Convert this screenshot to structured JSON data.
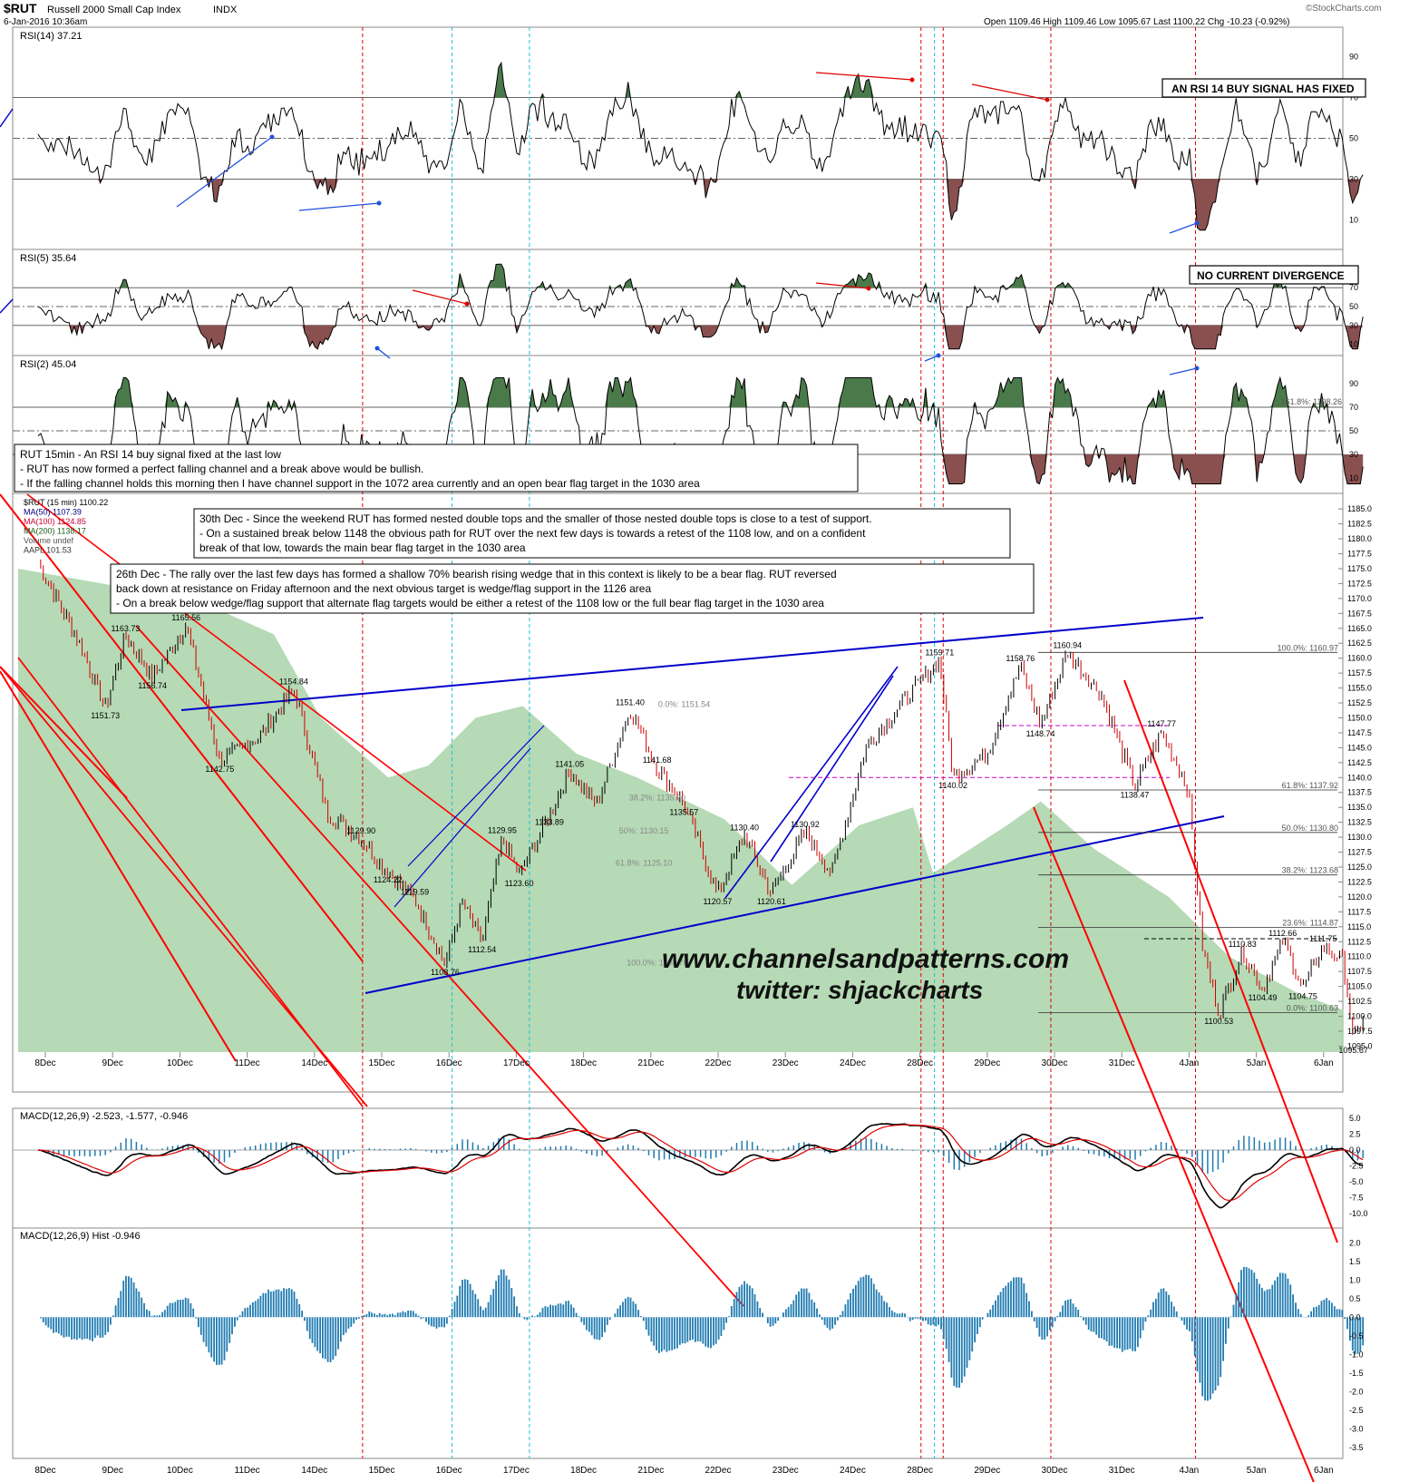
{
  "header": {
    "symbol": "$RUT",
    "name": "Russell 2000 Small Cap Index",
    "exchange": "INDX",
    "datetime": "6-Jan-2016 10:36am",
    "ohlc": "Open 1109.46  High 1109.46  Low 1095.67  Last 1100.22  Chg -10.23 (-0.92%)",
    "logo": "©StockCharts.com"
  },
  "colors": {
    "price_up": "#000000",
    "price_down": "#cc0000",
    "ma50": "#000080",
    "ma100": "#cc0033",
    "ma200": "#1a5c1a",
    "aapl_area": "#a8d4a8",
    "rsi_over": "#4a7a4a",
    "rsi_under": "#8a5050",
    "macd_hist": "#1f7bb0",
    "channel_red": "#ff0000",
    "channel_blue": "#0000cc"
  },
  "panels": {
    "rsi14": {
      "label": "RSI(14) 37.21",
      "box": "AN RSI 14 BUY SIGNAL HAS FIXED",
      "ticks": [
        "90",
        "70",
        "50",
        "30",
        "10"
      ]
    },
    "rsi5": {
      "label": "RSI(5) 35.64",
      "box": "NO CURRENT DIVERGENCE",
      "ticks": [
        "90",
        "70",
        "50",
        "30",
        "10"
      ]
    },
    "rsi2": {
      "label": "RSI(2) 45.04",
      "ticks": [
        "90",
        "70",
        "50",
        "30",
        "10"
      ],
      "fib_label": "161.8%: 1198.26"
    },
    "price": {
      "legend": [
        "$RUT (15 min) 1100.22",
        "MA(50) 1107.39",
        "MA(100) 1124.85",
        "MA(200) 1138.17",
        "Volume undef",
        "AAPL 101.53"
      ],
      "ticks": [
        "1185.0",
        "1182.5",
        "1180.0",
        "1177.5",
        "1175.0",
        "1172.5",
        "1170.0",
        "1167.5",
        "1165.0",
        "1162.5",
        "1160.0",
        "1157.5",
        "1155.0",
        "1152.5",
        "1150.0",
        "1147.5",
        "1145.0",
        "1142.5",
        "1140.0",
        "1137.5",
        "1135.0",
        "1132.5",
        "1130.0",
        "1127.5",
        "1125.0",
        "1122.5",
        "1120.0",
        "1117.5",
        "1115.0",
        "1112.5",
        "1110.0",
        "1107.5",
        "1105.0",
        "1102.5",
        "1100.0",
        "1097.5",
        "1095.0"
      ],
      "fib_labels": [
        "100.0%: 1160.97",
        "61.8%: 1137.92",
        "50.0%: 1130.80",
        "38.2%: 1123.68",
        "23.6%: 1114.87",
        "0.0%: 1100.63"
      ],
      "point_labels": [
        "1165.56",
        "1163.73",
        "1156.74",
        "1151.73",
        "1154.84",
        "1142.75",
        "1129.90",
        "1124.22",
        "1119.59",
        "1108.76",
        "1112.54",
        "1123.60",
        "1129.95",
        "1133.89",
        "1141.05",
        "1151.40",
        "1141.68",
        "1135.57",
        "1130.40",
        "1130.92",
        "1120.57",
        "1120.61",
        "1159.71",
        "1158.76",
        "1148.74",
        "1140.02",
        "1160.94",
        "1147.77",
        "1138.47",
        "1112.66",
        "1110.83",
        "1111.75",
        "1104.49",
        "1104.75",
        "1100.53",
        "1095.67"
      ],
      "mid_fib_labels": [
        "0.0%: 1151.54",
        "100.0%: 1108.76",
        "61.8%: 1125.10",
        "38.2%: 1135.20",
        "50%: 1130.15"
      ],
      "watermark": [
        "www.channelsandpatterns.com",
        "twitter: shjackcharts"
      ]
    },
    "macd": {
      "label": "MACD(12,26,9) -2.523, -1.577, -0.946",
      "ticks": [
        "5.0",
        "2.5",
        "0.0",
        "-2.5",
        "-5.0",
        "-7.5",
        "-10.0"
      ]
    },
    "hist": {
      "label": "MACD(12,26,9) Hist -0.946",
      "ticks": [
        "2.0",
        "1.5",
        "1.0",
        "0.5",
        "0.0",
        "-0.5",
        "-1.0",
        "-1.5",
        "-2.0",
        "-2.5",
        "-3.0",
        "-3.5"
      ]
    }
  },
  "notes": {
    "note1": [
      "RUT 15min - An  RSI 14 buy signal fixed at the last low",
      "- RUT has now formed a perfect falling channel and a break above would be bullish.",
      "- If the falling channel holds this morning then I have channel support in the 1072 area currently and an open bear flag target in the 1030 area"
    ],
    "note2": [
      "30th Dec - Since the weekend RUT has formed nested double tops and the smaller of those nested double tops is close to a test of support.",
      "- On a sustained break below 1148 the obvious path for RUT over the next few days is towards a retest of the 1108 low, and on a confident",
      "break of that low, towards the main bear flag target in the 1030 area"
    ],
    "note3": [
      "26th Dec - The rally over the last few days has formed a shallow 70% bearish rising wedge that in this context is likely to be a bear flag. RUT reversed",
      "back down at resistance on Friday afternoon and the next obvious target is wedge/flag support in the 1126 area",
      "- On a break below wedge/flag support that alternate flag targets would be either a retest of the 1108 low or the full bear flag target in the 1030 area"
    ]
  },
  "chart_data": {
    "type": "line",
    "title": "$RUT Russell 2000 Small Cap Index INDX",
    "interval": "15 min",
    "x_dates": [
      "8Dec",
      "9Dec",
      "10Dec",
      "11Dec",
      "14Dec",
      "15Dec",
      "16Dec",
      "17Dec",
      "18Dec",
      "21Dec",
      "22Dec",
      "23Dec",
      "24Dec",
      "28Dec",
      "29Dec",
      "30Dec",
      "31Dec",
      "4Jan",
      "5Jan",
      "6Jan"
    ],
    "price_pivots": [
      {
        "x": 0,
        "y": 1176.0
      },
      {
        "x": 0.6,
        "y": 1163.0
      },
      {
        "x": 1.0,
        "y": 1151.73
      },
      {
        "x": 1.3,
        "y": 1163.73
      },
      {
        "x": 1.7,
        "y": 1156.74
      },
      {
        "x": 2.2,
        "y": 1165.56
      },
      {
        "x": 2.7,
        "y": 1142.75
      },
      {
        "x": 3.3,
        "y": 1147.0
      },
      {
        "x": 3.8,
        "y": 1154.84
      },
      {
        "x": 4.3,
        "y": 1134.0
      },
      {
        "x": 4.8,
        "y": 1129.9
      },
      {
        "x": 5.2,
        "y": 1124.22
      },
      {
        "x": 5.6,
        "y": 1119.59
      },
      {
        "x": 6.05,
        "y": 1108.76
      },
      {
        "x": 6.3,
        "y": 1119.0
      },
      {
        "x": 6.6,
        "y": 1112.54
      },
      {
        "x": 6.9,
        "y": 1129.95
      },
      {
        "x": 7.15,
        "y": 1123.6
      },
      {
        "x": 7.6,
        "y": 1133.89
      },
      {
        "x": 7.9,
        "y": 1141.05
      },
      {
        "x": 8.3,
        "y": 1135.57
      },
      {
        "x": 8.8,
        "y": 1151.4
      },
      {
        "x": 9.2,
        "y": 1141.68
      },
      {
        "x": 9.6,
        "y": 1135.57
      },
      {
        "x": 10.1,
        "y": 1120.57
      },
      {
        "x": 10.5,
        "y": 1130.4
      },
      {
        "x": 10.9,
        "y": 1120.61
      },
      {
        "x": 11.4,
        "y": 1130.92
      },
      {
        "x": 11.8,
        "y": 1124.0
      },
      {
        "x": 12.3,
        "y": 1145.0
      },
      {
        "x": 12.8,
        "y": 1152.0
      },
      {
        "x": 13.4,
        "y": 1159.71
      },
      {
        "x": 13.6,
        "y": 1140.02
      },
      {
        "x": 14.1,
        "y": 1144.0
      },
      {
        "x": 14.6,
        "y": 1158.76
      },
      {
        "x": 14.9,
        "y": 1148.74
      },
      {
        "x": 15.3,
        "y": 1160.94
      },
      {
        "x": 15.8,
        "y": 1154.0
      },
      {
        "x": 16.3,
        "y": 1138.47
      },
      {
        "x": 16.7,
        "y": 1147.77
      },
      {
        "x": 17.1,
        "y": 1138.0
      },
      {
        "x": 17.3,
        "y": 1112.0
      },
      {
        "x": 17.55,
        "y": 1100.53
      },
      {
        "x": 17.9,
        "y": 1110.83
      },
      {
        "x": 18.2,
        "y": 1104.49
      },
      {
        "x": 18.5,
        "y": 1112.66
      },
      {
        "x": 18.8,
        "y": 1104.75
      },
      {
        "x": 19.1,
        "y": 1111.75
      },
      {
        "x": 19.4,
        "y": 1109.46
      },
      {
        "x": 19.55,
        "y": 1095.67
      },
      {
        "x": 19.7,
        "y": 1100.22
      }
    ],
    "ylim": [
      1094.0,
      1187.0
    ],
    "rsi_ylim": [
      0,
      100
    ],
    "macd_ylim": [
      -12,
      6
    ],
    "hist_ylim": [
      -3.75,
      2.25
    ]
  }
}
